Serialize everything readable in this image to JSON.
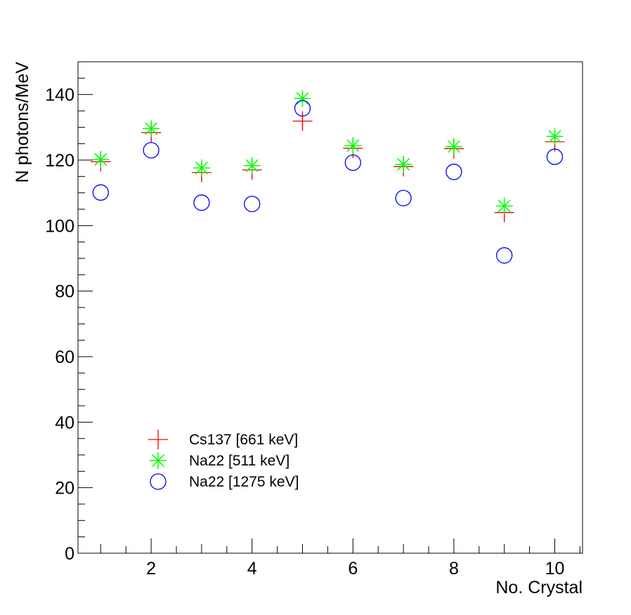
{
  "chart_data": {
    "type": "scatter",
    "xlabel": "No. Crystal",
    "ylabel": "N photons/MeV",
    "xlim": [
      0.55,
      10.55
    ],
    "ylim": [
      0,
      150
    ],
    "x_ticks": [
      2,
      4,
      6,
      8,
      10
    ],
    "y_ticks": [
      0,
      20,
      40,
      60,
      80,
      100,
      120,
      140
    ],
    "grid": false,
    "legend_placement": "lower-left",
    "x": [
      1,
      2,
      3,
      4,
      5,
      6,
      7,
      8,
      9,
      10
    ],
    "series": [
      {
        "name": "Cs137 [661 keV]",
        "marker": "plus",
        "color": "#ff0000",
        "values": [
          119.5,
          128.4,
          116.2,
          117.0,
          131.9,
          123.6,
          118.0,
          123.5,
          104.0,
          125.6
        ],
        "errors": [
          2.5,
          2.5,
          2.5,
          2.5,
          2.5,
          2.5,
          2.5,
          2.5,
          2.5,
          2.5
        ]
      },
      {
        "name": "Na22 [511 keV]",
        "marker": "star",
        "color": "#00ff00",
        "values": [
          120.2,
          129.6,
          117.6,
          118.3,
          138.8,
          124.4,
          118.7,
          124.1,
          106.0,
          127.2
        ]
      },
      {
        "name": "Na22 [1275 keV]",
        "marker": "circle",
        "color": "#0000ff",
        "values": [
          110.1,
          123.0,
          107.0,
          106.6,
          135.8,
          119.2,
          108.4,
          116.4,
          90.9,
          121.0
        ]
      }
    ]
  }
}
